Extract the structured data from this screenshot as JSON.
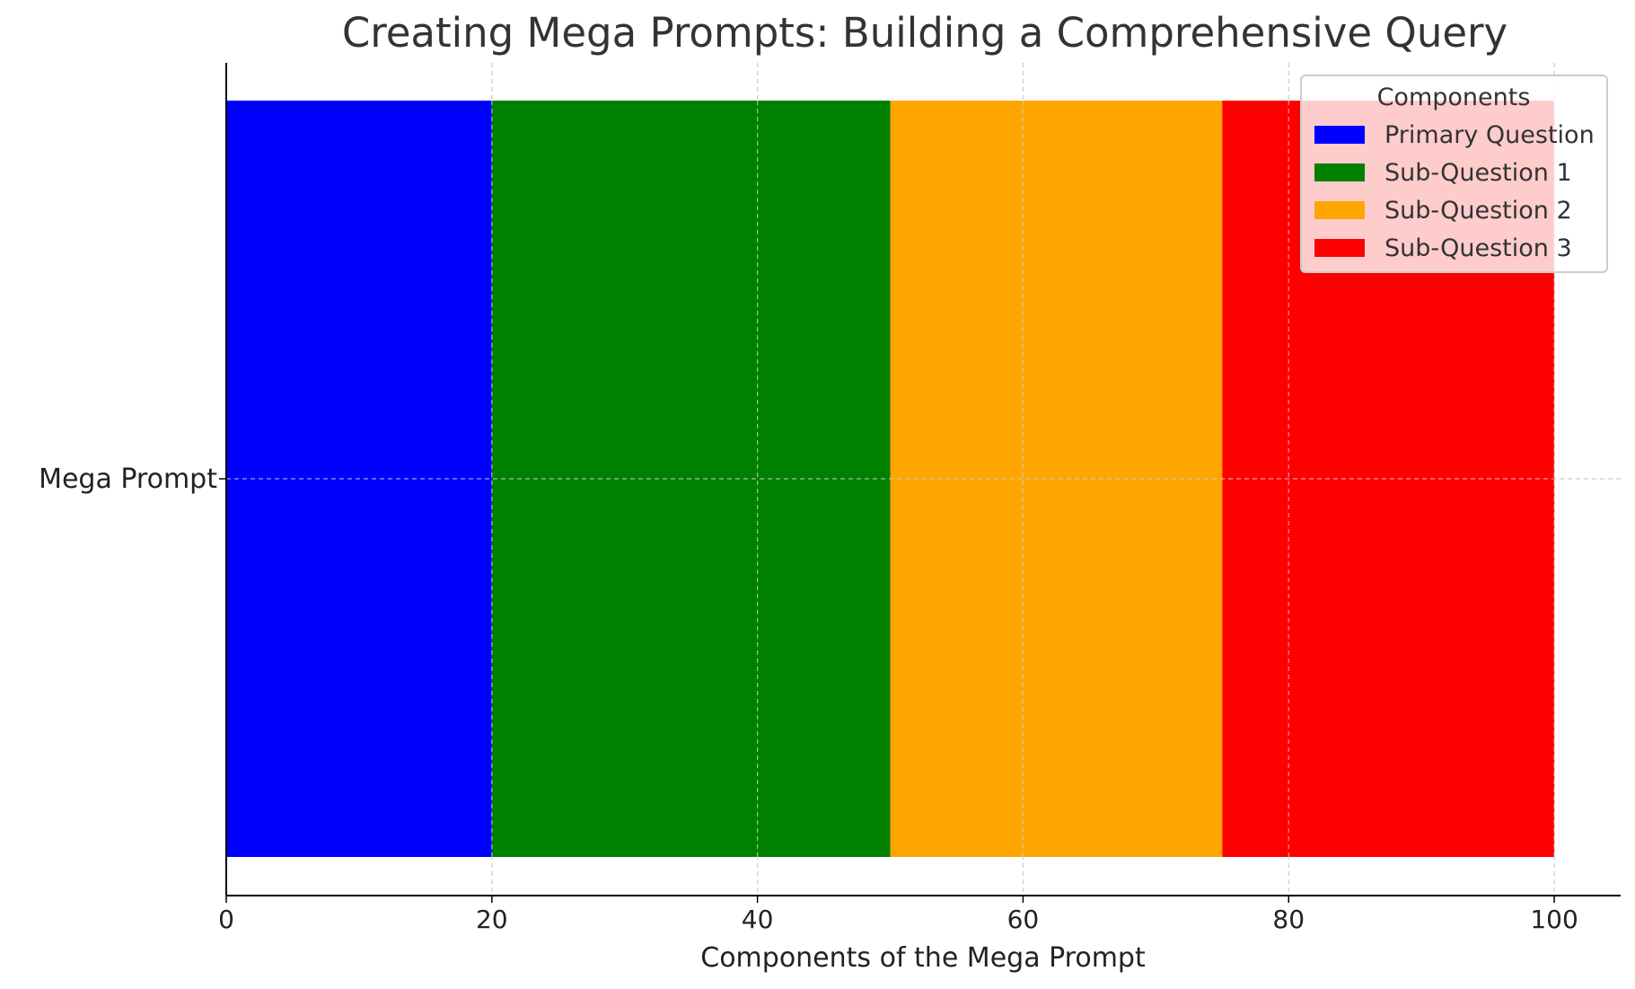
{
  "chart_data": {
    "type": "bar",
    "orientation": "horizontal",
    "stacked": true,
    "title": "Creating Mega Prompts: Building a Comprehensive Query",
    "xlabel": "Components of the Mega Prompt",
    "ylabel": "",
    "categories": [
      "Mega Prompt"
    ],
    "series": [
      {
        "name": "Primary Question",
        "values": [
          20
        ],
        "color": "#0000ff"
      },
      {
        "name": "Sub-Question 1",
        "values": [
          30
        ],
        "color": "#008000"
      },
      {
        "name": "Sub-Question 2",
        "values": [
          25
        ],
        "color": "#ffa500"
      },
      {
        "name": "Sub-Question 3",
        "values": [
          25
        ],
        "color": "#ff0000"
      }
    ],
    "xlim": [
      0,
      105
    ],
    "xticks": [
      0,
      20,
      40,
      60,
      80,
      100
    ],
    "grid": true,
    "legend": {
      "title": "Components",
      "placement": "top-right"
    }
  }
}
